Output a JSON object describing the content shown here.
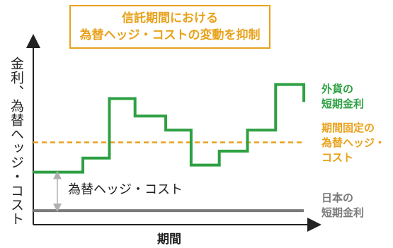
{
  "callout": {
    "line1": "信託期間における",
    "line2": "為替ヘッジ・コストの変動を抑制"
  },
  "ylabel": "金利、為替ヘッジ・コスト",
  "xlabel": "期間",
  "legend": {
    "foreign_line1": "外貨の",
    "foreign_line2": "短期金利",
    "fixed_line1": "期間固定の",
    "fixed_line2": "為替ヘッジ・",
    "fixed_line3": "コスト",
    "japan_line1": "日本の",
    "japan_line2": "短期金利"
  },
  "cost_label": "為替ヘッジ・コスト",
  "colors": {
    "foreign": "#2ea043",
    "fixed": "#e8a21b",
    "japan": "#7a7a7a",
    "axis": "#222222",
    "arrow": "#b0b0b0"
  },
  "chart_data": {
    "type": "line",
    "xlabel": "期間",
    "ylabel": "金利、為替ヘッジ・コスト",
    "grid": false,
    "ticks": false,
    "ylim": [
      0,
      100
    ],
    "xlim": [
      0,
      10
    ],
    "series": [
      {
        "name": "外貨の短期金利",
        "style": "step",
        "x": [
          0,
          1.76,
          2.7,
          3.61,
          4.7,
          5.6,
          6.6,
          7.6,
          8.6,
          9.6
        ],
        "y": [
          30,
          38,
          72,
          62,
          54,
          34,
          42,
          54,
          80,
          70
        ]
      },
      {
        "name": "期間固定の為替ヘッジ・コスト",
        "style": "dashed",
        "x": [
          0,
          9.6
        ],
        "y": [
          47,
          47
        ]
      },
      {
        "name": "日本の短期金利",
        "style": "solid",
        "x": [
          0,
          9.6
        ],
        "y": [
          8,
          8
        ]
      }
    ]
  }
}
